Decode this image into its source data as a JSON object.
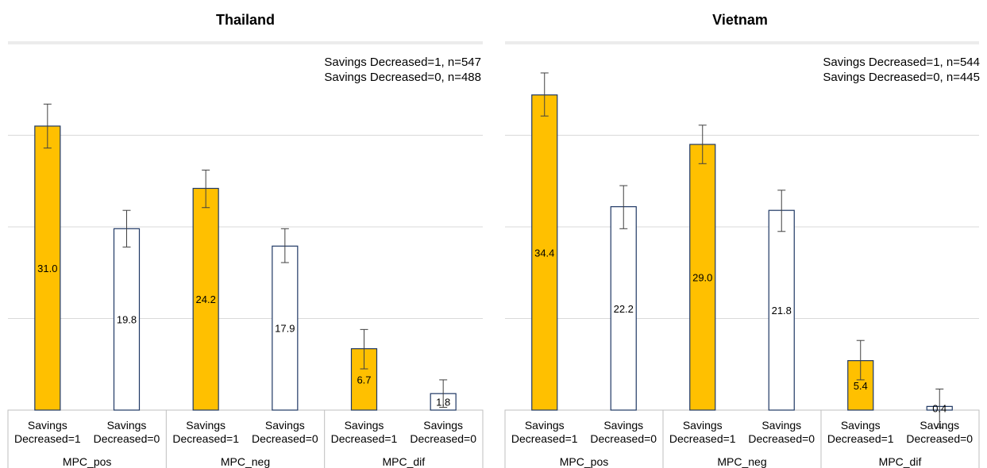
{
  "colors": {
    "filled": "#ffc000",
    "empty": "#ffffff",
    "border": "#1f3864",
    "error": "#404040"
  },
  "chart_data": [
    {
      "type": "bar",
      "title": "Thailand",
      "legend": [
        "Savings Decreased=1, n=547",
        "Savings Decreased=0, n=488"
      ],
      "groups": [
        {
          "name": "MPC_pos",
          "bars": [
            {
              "label": "Savings Decreased=1",
              "value": 31.0,
              "display": "31.0",
              "err_low": 28.6,
              "err_high": 33.4,
              "filled": true
            },
            {
              "label": "Savings Decreased=0",
              "value": 19.8,
              "display": "19.8",
              "err_low": 17.8,
              "err_high": 21.8,
              "filled": false
            }
          ]
        },
        {
          "name": "MPC_neg",
          "bars": [
            {
              "label": "Savings Decreased=1",
              "value": 24.2,
              "display": "24.2",
              "err_low": 22.1,
              "err_high": 26.2,
              "filled": true
            },
            {
              "label": "Savings Decreased=0",
              "value": 17.9,
              "display": "17.9",
              "err_low": 16.1,
              "err_high": 19.8,
              "filled": false
            }
          ]
        },
        {
          "name": "MPC_dif",
          "bars": [
            {
              "label": "Savings Decreased=1",
              "value": 6.7,
              "display": "6.7",
              "err_low": 4.5,
              "err_high": 8.8,
              "filled": true
            },
            {
              "label": "Savings Decreased=0",
              "value": 1.8,
              "display": "1.8",
              "err_low": 0.3,
              "err_high": 3.3,
              "filled": false
            }
          ]
        }
      ],
      "ylim": [
        0,
        40
      ]
    },
    {
      "type": "bar",
      "title": "Vietnam",
      "legend": [
        "Savings Decreased=1, n=544",
        "Savings Decreased=0, n=445"
      ],
      "groups": [
        {
          "name": "MPC_pos",
          "bars": [
            {
              "label": "Savings Decreased=1",
              "value": 34.4,
              "display": "34.4",
              "err_low": 32.1,
              "err_high": 36.8,
              "filled": true
            },
            {
              "label": "Savings Decreased=0",
              "value": 22.2,
              "display": "22.2",
              "err_low": 19.8,
              "err_high": 24.5,
              "filled": false
            }
          ]
        },
        {
          "name": "MPC_neg",
          "bars": [
            {
              "label": "Savings Decreased=1",
              "value": 29.0,
              "display": "29.0",
              "err_low": 26.9,
              "err_high": 31.1,
              "filled": true
            },
            {
              "label": "Savings Decreased=0",
              "value": 21.8,
              "display": "21.8",
              "err_low": 19.5,
              "err_high": 24.0,
              "filled": false
            }
          ]
        },
        {
          "name": "MPC_dif",
          "bars": [
            {
              "label": "Savings Decreased=1",
              "value": 5.4,
              "display": "5.4",
              "err_low": 3.3,
              "err_high": 7.6,
              "filled": true
            },
            {
              "label": "Savings Decreased=0",
              "value": 0.4,
              "display": "0.4",
              "err_low": -1.9,
              "err_high": 2.3,
              "filled": false
            }
          ]
        }
      ],
      "ylim": [
        0,
        40
      ]
    }
  ]
}
